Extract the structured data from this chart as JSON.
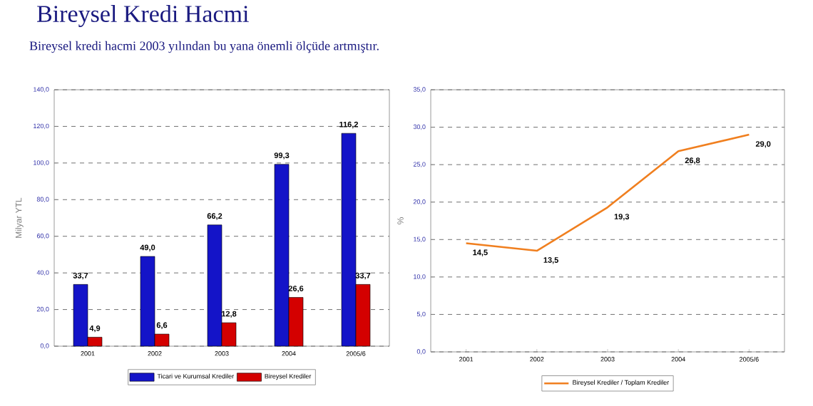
{
  "chart_data": [
    {
      "type": "bar",
      "title": "Bireysel Kredi Hacmi",
      "subtitle": "Bireysel kredi hacmi 2003 yılından bu yana önemli ölçüde artmıştır.",
      "categories": [
        "2001",
        "2002",
        "2003",
        "2004",
        "2005/6"
      ],
      "ylabel": "Milyar YTL",
      "ylim": [
        0,
        140
      ],
      "yticks": [
        {
          "value": 0,
          "label": "0,0"
        },
        {
          "value": 20,
          "label": "20,0"
        },
        {
          "value": 40,
          "label": "40,0"
        },
        {
          "value": 60,
          "label": "60,0"
        },
        {
          "value": 80,
          "label": "80,0"
        },
        {
          "value": 100,
          "label": "100,0"
        },
        {
          "value": 120,
          "label": "120,0"
        },
        {
          "value": 140,
          "label": "140,0"
        }
      ],
      "grid": "y",
      "legend": "bottom",
      "series": [
        {
          "name": "Ticari ve Kurumsal Krediler",
          "color": "#1414c8",
          "values": [
            33.7,
            49.0,
            66.2,
            99.3,
            116.2
          ],
          "value_labels": [
            "33,7",
            "49,0",
            "66,2",
            "99,3",
            "116,2"
          ]
        },
        {
          "name": "Bireysel Krediler",
          "color": "#d40000",
          "values": [
            4.9,
            6.6,
            12.8,
            26.6,
            33.7
          ],
          "value_labels": [
            "4,9",
            "6,6",
            "12,8",
            "26,6",
            "33,7"
          ]
        }
      ]
    },
    {
      "type": "line",
      "categories": [
        "2001",
        "2002",
        "2003",
        "2004",
        "2005/6"
      ],
      "ylabel": "%",
      "ylim": [
        0,
        35
      ],
      "yticks": [
        {
          "value": 0,
          "label": "0,0"
        },
        {
          "value": 5,
          "label": "5,0"
        },
        {
          "value": 10,
          "label": "10,0"
        },
        {
          "value": 15,
          "label": "15,0"
        },
        {
          "value": 20,
          "label": "20,0"
        },
        {
          "value": 25,
          "label": "25,0"
        },
        {
          "value": 30,
          "label": "30,0"
        },
        {
          "value": 35,
          "label": "35,0"
        }
      ],
      "grid": "y",
      "legend": "bottom",
      "series": [
        {
          "name": "Bireysel Krediler / Toplam Krediler",
          "color": "#f07f1f",
          "values": [
            14.5,
            13.5,
            19.3,
            26.8,
            29.0
          ],
          "value_labels": [
            "14,5",
            "13,5",
            "19,3",
            "26,8",
            "29,0"
          ]
        }
      ]
    }
  ]
}
